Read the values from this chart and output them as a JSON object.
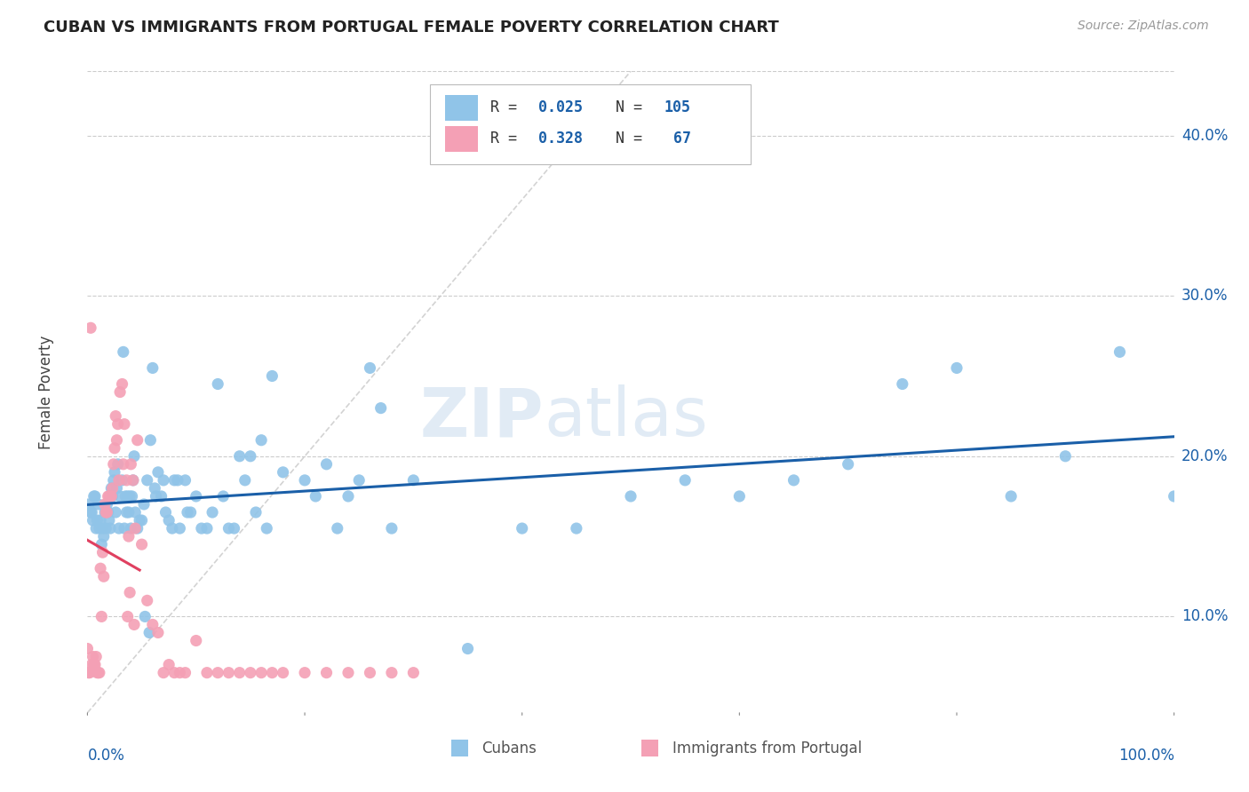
{
  "title": "CUBAN VS IMMIGRANTS FROM PORTUGAL FEMALE POVERTY CORRELATION CHART",
  "source": "Source: ZipAtlas.com",
  "ylabel": "Female Poverty",
  "ytick_labels": [
    "10.0%",
    "20.0%",
    "30.0%",
    "40.0%"
  ],
  "ytick_values": [
    0.1,
    0.2,
    0.3,
    0.4
  ],
  "xlim": [
    0.0,
    1.0
  ],
  "ylim": [
    0.04,
    0.44
  ],
  "watermark_zip": "ZIP",
  "watermark_atlas": "atlas",
  "legend_label1": "Cubans",
  "legend_label2": "Immigrants from Portugal",
  "color_blue": "#90c4e8",
  "color_blue_line": "#1a5fa8",
  "color_pink": "#f4a0b5",
  "color_pink_line": "#e04060",
  "color_diag": "#c8c8c8",
  "background": "#ffffff",
  "cubans_x": [
    0.001,
    0.003,
    0.005,
    0.007,
    0.008,
    0.009,
    0.01,
    0.011,
    0.012,
    0.013,
    0.014,
    0.015,
    0.016,
    0.017,
    0.018,
    0.019,
    0.02,
    0.021,
    0.022,
    0.023,
    0.024,
    0.025,
    0.026,
    0.027,
    0.028,
    0.03,
    0.032,
    0.034,
    0.035,
    0.036,
    0.037,
    0.038,
    0.04,
    0.042,
    0.044,
    0.046,
    0.048,
    0.05,
    0.052,
    0.055,
    0.058,
    0.06,
    0.062,
    0.065,
    0.068,
    0.07,
    0.075,
    0.08,
    0.085,
    0.09,
    0.095,
    0.1,
    0.11,
    0.12,
    0.13,
    0.14,
    0.15,
    0.16,
    0.17,
    0.18,
    0.2,
    0.22,
    0.24,
    0.26,
    0.28,
    0.3,
    0.35,
    0.4,
    0.45,
    0.5,
    0.55,
    0.6,
    0.65,
    0.7,
    0.75,
    0.8,
    0.85,
    0.9,
    0.95,
    1.0,
    0.004,
    0.006,
    0.029,
    0.033,
    0.039,
    0.041,
    0.043,
    0.053,
    0.057,
    0.063,
    0.072,
    0.078,
    0.083,
    0.092,
    0.105,
    0.115,
    0.125,
    0.135,
    0.145,
    0.155,
    0.165,
    0.21,
    0.23,
    0.25,
    0.27
  ],
  "cubans_y": [
    0.17,
    0.165,
    0.16,
    0.175,
    0.155,
    0.16,
    0.17,
    0.155,
    0.16,
    0.145,
    0.155,
    0.15,
    0.165,
    0.155,
    0.17,
    0.165,
    0.16,
    0.155,
    0.18,
    0.175,
    0.185,
    0.19,
    0.165,
    0.18,
    0.195,
    0.175,
    0.185,
    0.155,
    0.175,
    0.165,
    0.175,
    0.165,
    0.155,
    0.185,
    0.165,
    0.155,
    0.16,
    0.16,
    0.17,
    0.185,
    0.21,
    0.255,
    0.18,
    0.19,
    0.175,
    0.185,
    0.16,
    0.185,
    0.155,
    0.185,
    0.165,
    0.175,
    0.155,
    0.245,
    0.155,
    0.2,
    0.2,
    0.21,
    0.25,
    0.19,
    0.185,
    0.195,
    0.175,
    0.255,
    0.155,
    0.185,
    0.08,
    0.155,
    0.155,
    0.175,
    0.185,
    0.175,
    0.185,
    0.195,
    0.245,
    0.255,
    0.175,
    0.2,
    0.265,
    0.175,
    0.165,
    0.175,
    0.155,
    0.265,
    0.175,
    0.175,
    0.2,
    0.1,
    0.09,
    0.175,
    0.165,
    0.155,
    0.185,
    0.165,
    0.155,
    0.165,
    0.175,
    0.155,
    0.185,
    0.165,
    0.155,
    0.175,
    0.155,
    0.185,
    0.23
  ],
  "portugal_x": [
    0.0,
    0.001,
    0.002,
    0.003,
    0.004,
    0.005,
    0.006,
    0.007,
    0.008,
    0.009,
    0.01,
    0.011,
    0.012,
    0.013,
    0.014,
    0.015,
    0.016,
    0.017,
    0.018,
    0.019,
    0.02,
    0.021,
    0.022,
    0.023,
    0.024,
    0.025,
    0.026,
    0.027,
    0.028,
    0.03,
    0.032,
    0.034,
    0.036,
    0.038,
    0.04,
    0.042,
    0.044,
    0.046,
    0.05,
    0.055,
    0.06,
    0.065,
    0.07,
    0.075,
    0.08,
    0.085,
    0.09,
    0.1,
    0.11,
    0.12,
    0.13,
    0.14,
    0.15,
    0.16,
    0.17,
    0.18,
    0.2,
    0.22,
    0.24,
    0.26,
    0.28,
    0.3,
    0.029,
    0.033,
    0.037,
    0.039,
    0.043
  ],
  "portugal_y": [
    0.08,
    0.065,
    0.065,
    0.28,
    0.07,
    0.075,
    0.07,
    0.07,
    0.075,
    0.065,
    0.065,
    0.065,
    0.13,
    0.1,
    0.14,
    0.125,
    0.17,
    0.165,
    0.165,
    0.175,
    0.175,
    0.175,
    0.175,
    0.18,
    0.195,
    0.205,
    0.225,
    0.21,
    0.22,
    0.24,
    0.245,
    0.22,
    0.185,
    0.15,
    0.195,
    0.185,
    0.155,
    0.21,
    0.145,
    0.11,
    0.095,
    0.09,
    0.065,
    0.07,
    0.065,
    0.065,
    0.065,
    0.085,
    0.065,
    0.065,
    0.065,
    0.065,
    0.065,
    0.065,
    0.065,
    0.065,
    0.065,
    0.065,
    0.065,
    0.065,
    0.065,
    0.065,
    0.185,
    0.195,
    0.1,
    0.115,
    0.095
  ]
}
